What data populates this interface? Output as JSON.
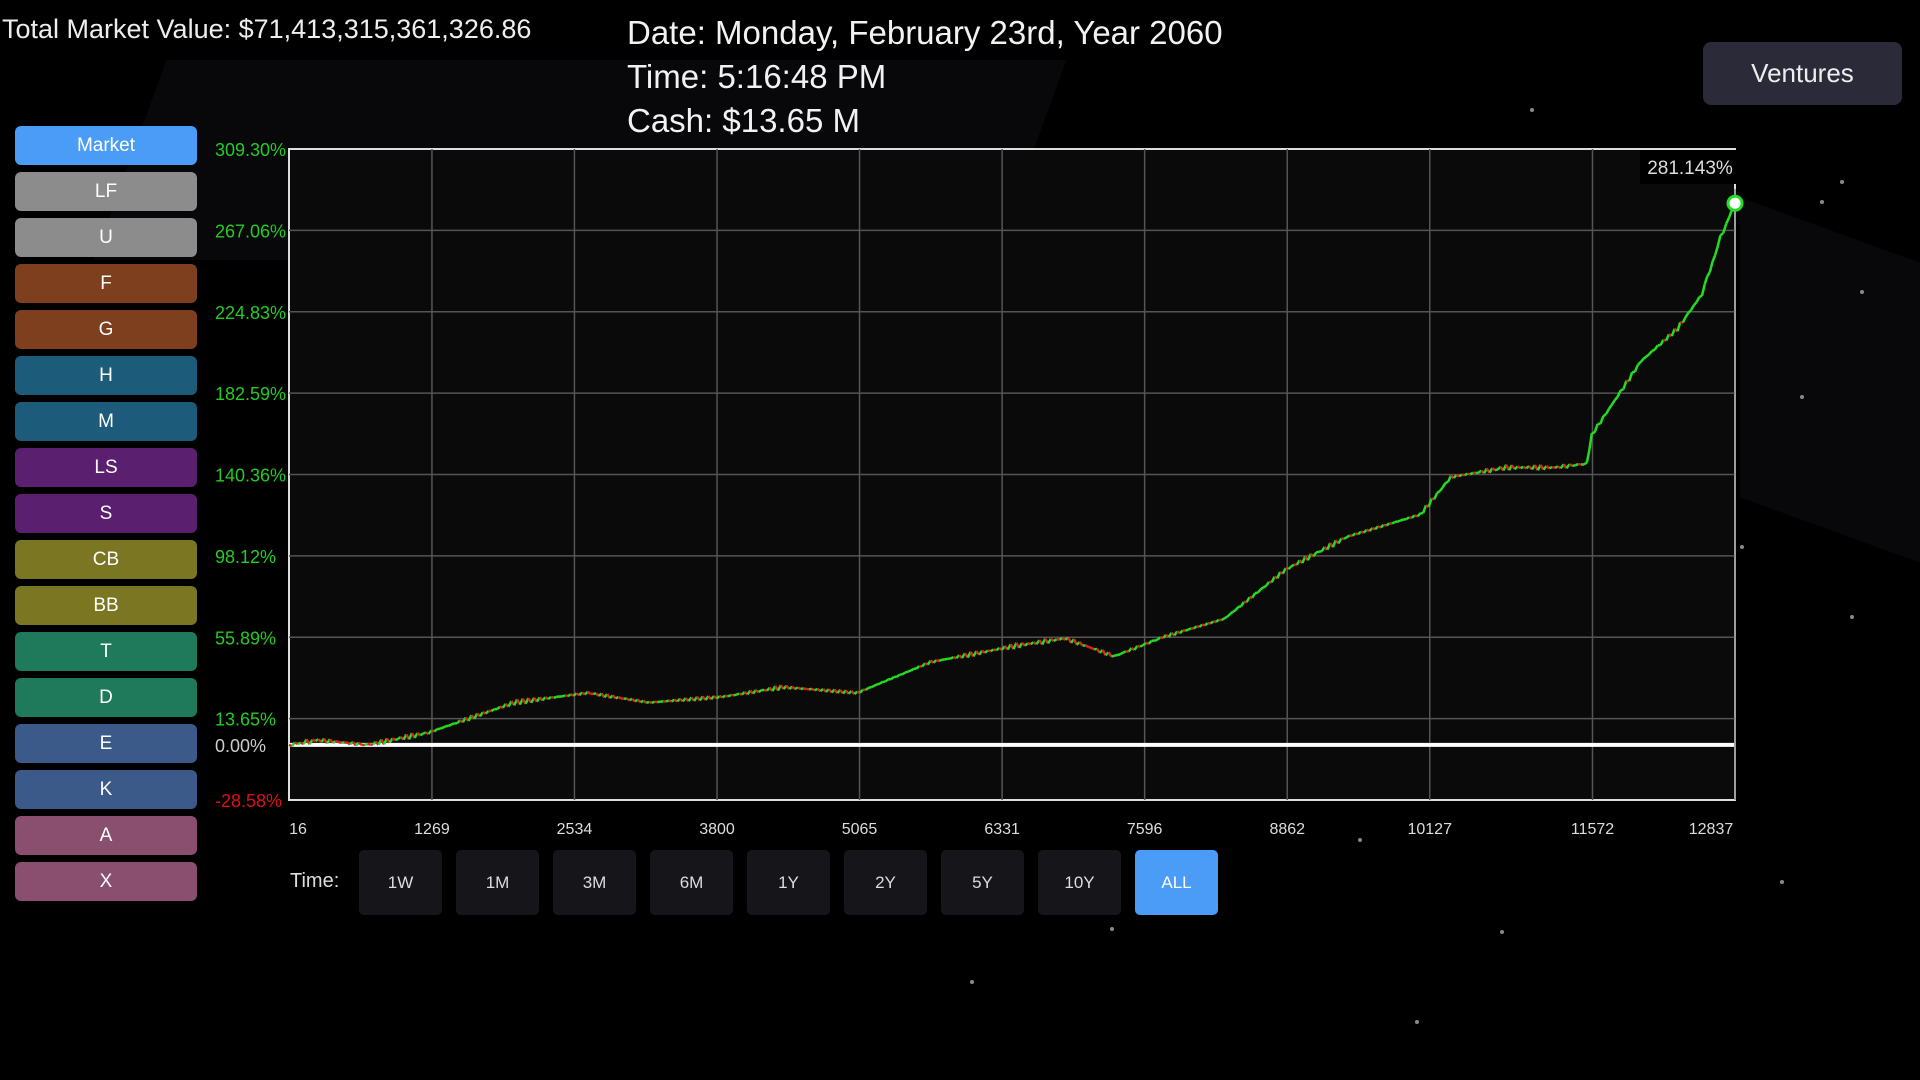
{
  "header": {
    "total_market_value": "Total Market Value: $71,413,315,361,326.86",
    "date": "Date: Monday, February 23rd, Year 2060",
    "time": "Time: 5:16:48 PM",
    "cash": "Cash: $13.65 M",
    "ventures_label": "Ventures"
  },
  "sidebar": {
    "items": [
      {
        "label": "Market",
        "color": "#4a9cf7"
      },
      {
        "label": "LF",
        "color": "#8c8c8c"
      },
      {
        "label": "U",
        "color": "#8c8c8c"
      },
      {
        "label": "F",
        "color": "#7e3f1e"
      },
      {
        "label": "G",
        "color": "#7e3f1e"
      },
      {
        "label": "H",
        "color": "#1d5b7b"
      },
      {
        "label": "M",
        "color": "#1d5b7b"
      },
      {
        "label": "LS",
        "color": "#5a1f6e"
      },
      {
        "label": "S",
        "color": "#5a1f6e"
      },
      {
        "label": "CB",
        "color": "#7a7622"
      },
      {
        "label": "BB",
        "color": "#7a7622"
      },
      {
        "label": "T",
        "color": "#1e7a5a"
      },
      {
        "label": "D",
        "color": "#1e7a5a"
      },
      {
        "label": "E",
        "color": "#3b5a8a"
      },
      {
        "label": "K",
        "color": "#3b5a8a"
      },
      {
        "label": "A",
        "color": "#8a4e6e"
      },
      {
        "label": "X",
        "color": "#8a4e6e"
      }
    ]
  },
  "time_range": {
    "label": "Time:",
    "options": [
      "1W",
      "1M",
      "3M",
      "6M",
      "1Y",
      "2Y",
      "5Y",
      "10Y",
      "ALL"
    ],
    "selected": "ALL",
    "selected_color": "#4a9cf7"
  },
  "chart_data": {
    "type": "line",
    "current_value_label": "281.143%",
    "ylim": [
      -28.58,
      309.3
    ],
    "xlim": [
      0,
      12837
    ],
    "y_ticks": [
      "309.30%",
      "267.06%",
      "224.83%",
      "182.59%",
      "140.36%",
      "98.12%",
      "55.89%",
      "13.65%",
      "0.00%",
      "-28.58%"
    ],
    "y_tick_values": [
      309.3,
      267.06,
      224.83,
      182.59,
      140.36,
      98.12,
      55.89,
      13.65,
      0,
      -28.58
    ],
    "x_ticks": [
      "16",
      "1269",
      "2534",
      "3800",
      "5065",
      "6331",
      "7596",
      "8862",
      "10127",
      "11572",
      "12837"
    ],
    "x_tick_values": [
      16,
      1269,
      2534,
      3800,
      5065,
      6331,
      7596,
      8862,
      10127,
      11572,
      12837
    ],
    "grid": true,
    "colors": {
      "up": "#22dd22",
      "down": "#dd2222",
      "baseline": "#ffffff",
      "positive_tick": "#22cc22",
      "negative_tick": "#dd1111",
      "zero_tick": "#cccccc"
    },
    "series": [
      {
        "x": [
          0,
          261,
          696,
          1239,
          2000,
          2652,
          3196,
          3848,
          4391,
          5044,
          5696,
          6457,
          6892,
          7326,
          7761,
          8304,
          8848,
          9391,
          10044,
          10315,
          10805,
          11239,
          11522,
          11566,
          12000,
          12326,
          12544,
          12707,
          12837
        ],
        "y": [
          0,
          2.5,
          0,
          6.4,
          22,
          27,
          22,
          25,
          30,
          27,
          43,
          51.5,
          55.3,
          46,
          56,
          65.5,
          91,
          108,
          119.6,
          139,
          144,
          144,
          146,
          161,
          199,
          216,
          234,
          263,
          281.143
        ]
      }
    ]
  }
}
